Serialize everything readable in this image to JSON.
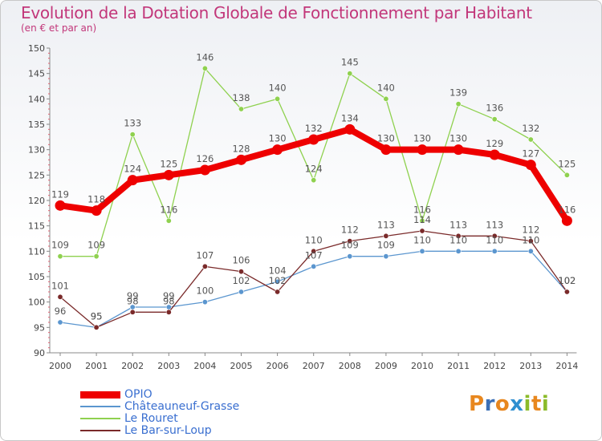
{
  "title": "Evolution de la Dotation Globale de Fonctionnement par Habitant",
  "subtitle": "(en € et par an)",
  "logo_text": "Proxiti",
  "chart_data": {
    "type": "line",
    "title": "Evolution de la Dotation Globale de Fonctionnement par Habitant",
    "subtitle": "(en € et par an)",
    "xlabel": "",
    "ylabel": "",
    "ylim": [
      90,
      150
    ],
    "y_ticks": [
      90,
      95,
      100,
      105,
      110,
      115,
      120,
      125,
      130,
      135,
      140,
      145,
      150
    ],
    "categories": [
      "2000",
      "2001",
      "2002",
      "2003",
      "2004",
      "2005",
      "2006",
      "2007",
      "2008",
      "2009",
      "2010",
      "2011",
      "2012",
      "2013",
      "2014"
    ],
    "grid": false,
    "legend_position": "bottom-left",
    "series": [
      {
        "name": "OPIO",
        "color": "#ee0000",
        "emphasis": true,
        "values": [
          119,
          118,
          124,
          125,
          126,
          128,
          130,
          132,
          134,
          130,
          130,
          130,
          129,
          127,
          116
        ]
      },
      {
        "name": "Châteauneuf-Grasse",
        "color": "#5b96cf",
        "emphasis": false,
        "values": [
          96,
          95,
          99,
          99,
          100,
          102,
          104,
          107,
          109,
          109,
          110,
          110,
          110,
          110,
          102
        ]
      },
      {
        "name": "Le Rouret",
        "color": "#8fd14f",
        "emphasis": false,
        "values": [
          109,
          109,
          133,
          116,
          146,
          138,
          140,
          124,
          145,
          140,
          116,
          139,
          136,
          132,
          125
        ]
      },
      {
        "name": "Le Bar-sur-Loup",
        "color": "#7a2a2a",
        "emphasis": false,
        "values": [
          101,
          95,
          98,
          98,
          107,
          106,
          102,
          110,
          112,
          113,
          114,
          113,
          113,
          112,
          102
        ]
      }
    ]
  }
}
